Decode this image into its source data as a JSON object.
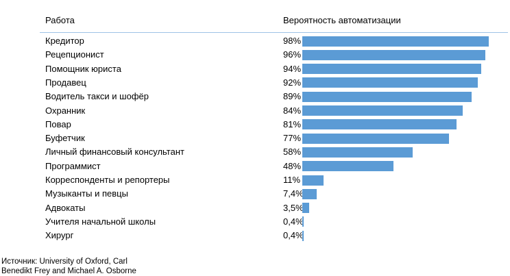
{
  "colors": {
    "bar": "#5b9bd5",
    "header_rule": "#9dc3e6",
    "text": "#000000"
  },
  "header": {
    "job_column": "Работа",
    "probability_column": "Вероятность автоматизации"
  },
  "chart_data": {
    "type": "bar",
    "orientation": "horizontal",
    "categories": [
      "Кредитор",
      "Рецепционист",
      "Помощник юриста",
      "Продавец",
      "Водитель такси и шофёр",
      "Охранник",
      "Повар",
      "Буфетчик",
      "Личный финансовый консультант",
      "Программист",
      "Корреспонденты и репортеры",
      "Музыканты и певцы",
      "Адвокаты",
      "Учителя начальной школы",
      "Хирург"
    ],
    "values": [
      98,
      96,
      94,
      92,
      89,
      84,
      81,
      77,
      58,
      48,
      11,
      7.4,
      3.5,
      0.4,
      0.4
    ],
    "value_labels": [
      "98%",
      "96%",
      "94%",
      "92%",
      "89%",
      "84%",
      "81%",
      "77%",
      "58%",
      "48%",
      "11%",
      "7,4%",
      "3,5%",
      "0,4%",
      "0,4%"
    ],
    "xlim": [
      0,
      100
    ],
    "grid": false,
    "legend": "none"
  },
  "source": {
    "line1": "Источник: University of Oxford, Carl",
    "line2": "Benedikt Frey and Michael A. Osborne"
  }
}
